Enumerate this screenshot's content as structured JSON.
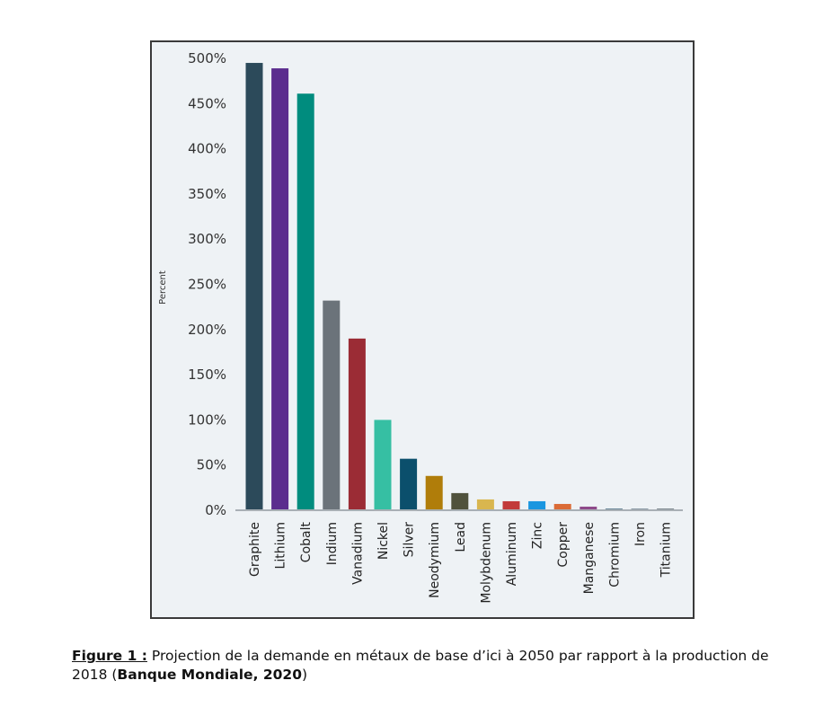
{
  "chart_data": {
    "type": "bar",
    "title": "",
    "xlabel": "",
    "ylabel": "Percent",
    "ylim": [
      0,
      500
    ],
    "yticks": [
      0,
      50,
      100,
      150,
      200,
      250,
      300,
      350,
      400,
      450,
      500
    ],
    "ytick_labels": [
      "0%",
      "50%",
      "100%",
      "150%",
      "200%",
      "250%",
      "300%",
      "350%",
      "400%",
      "450%",
      "500%"
    ],
    "grid": false,
    "legend": "none",
    "categories": [
      "Graphite",
      "Lithium",
      "Cobalt",
      "Indium",
      "Vanadium",
      "Nickel",
      "Silver",
      "Neodymium",
      "Lead",
      "Molybdenum",
      "Aluminum",
      "Zinc",
      "Copper",
      "Manganese",
      "Chromium",
      "Iron",
      "Titanium"
    ],
    "values": [
      494,
      488,
      460,
      231,
      189,
      99,
      56,
      37,
      18,
      11,
      9,
      9,
      6,
      3,
      1,
      1,
      1
    ],
    "colors": [
      "#2c4a5a",
      "#5b2d8e",
      "#008c7e",
      "#6b737a",
      "#9b2c35",
      "#36bfa3",
      "#0b4f6c",
      "#b07d0a",
      "#50523c",
      "#d9b64f",
      "#c23a3a",
      "#1a96e0",
      "#db6b36",
      "#8e4a8a",
      "#6a8799",
      "#8a9aa6",
      "#7f8a91"
    ]
  },
  "caption": {
    "figure_label": "Figure 1 :",
    "text": " Projection de la demande en métaux de base d’ici à 2050 par rapport à la production de 2018 (",
    "source": "Banque Mondiale, 2020",
    "close": ")"
  }
}
